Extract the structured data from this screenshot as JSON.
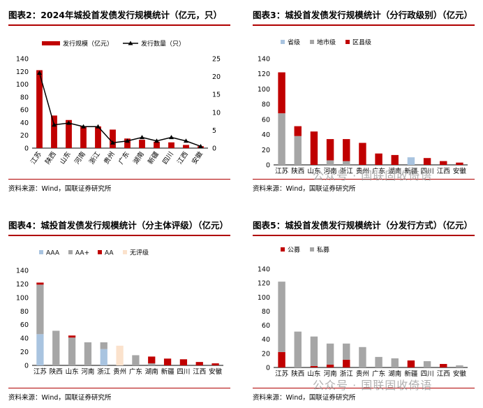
{
  "watermark": "公众号 · 国联固收倚语",
  "chart_data": [
    {
      "id": "c2",
      "type": "bar+line",
      "title": "图表2：2024年城投首发债发行规模统计（亿元，只）",
      "source": "资料来源：Wind，国联证券研究所",
      "categories": [
        "江苏",
        "陕西",
        "山东",
        "河南",
        "浙江",
        "贵州",
        "广东",
        "湖南",
        "新疆",
        "四川",
        "江西",
        "安徽"
      ],
      "series": [
        {
          "name": "发行规模（亿元）",
          "kind": "bar",
          "axis": "left",
          "color": "#c00000",
          "values": [
            122,
            51,
            44,
            34,
            34,
            29,
            15,
            13,
            10,
            9,
            5,
            3
          ]
        },
        {
          "name": "发行数量（只）",
          "kind": "line",
          "axis": "right",
          "color": "#000000",
          "values": [
            21,
            6.5,
            7,
            6,
            6,
            1.5,
            2,
            3,
            2,
            3,
            2,
            0.5
          ]
        }
      ],
      "ylim_left": [
        0,
        140
      ],
      "yticks_left": [
        0,
        20,
        40,
        60,
        80,
        100,
        120,
        140
      ],
      "ylim_right": [
        0,
        25
      ],
      "yticks_right": [
        0,
        5,
        10,
        15,
        20,
        25
      ],
      "legend": "top"
    },
    {
      "id": "c3",
      "type": "stacked-bar",
      "title": "图表3：城投首发债发行规模统计（分行政级别）（亿元）",
      "source": "资料来源：Wind，国联证券研究所",
      "categories": [
        "江苏",
        "陕西",
        "山东",
        "河南",
        "浙江",
        "贵州",
        "广东",
        "湖南",
        "新疆",
        "四川",
        "江西",
        "安徽"
      ],
      "series": [
        {
          "name": "省级",
          "color": "#a9c4e0",
          "values": [
            0,
            0,
            0,
            0,
            0,
            0,
            0,
            0,
            10,
            0,
            0,
            0
          ]
        },
        {
          "name": "地市级",
          "color": "#a6a6a6",
          "values": [
            68,
            38,
            0,
            6,
            5,
            0,
            0,
            0,
            0,
            0,
            0,
            0
          ]
        },
        {
          "name": "区县级",
          "color": "#c00000",
          "values": [
            54,
            13,
            44,
            28,
            29,
            29,
            15,
            13,
            0,
            9,
            5,
            3
          ]
        }
      ],
      "ylim": [
        0,
        140
      ],
      "yticks": [
        0,
        20,
        40,
        60,
        80,
        100,
        120,
        140
      ],
      "legend": "top-left"
    },
    {
      "id": "c4",
      "type": "stacked-bar",
      "title": "图表4：城投首发债发行规模统计（分主体评级）（亿元）",
      "source": "资料来源：Wind，国联证券研究所",
      "categories": [
        "江苏",
        "陕西",
        "山东",
        "河南",
        "浙江",
        "贵州",
        "广东",
        "湖南",
        "新疆",
        "四川",
        "江西",
        "安徽"
      ],
      "series": [
        {
          "name": "AAA",
          "color": "#a9c4e0",
          "values": [
            46,
            0,
            0,
            0,
            24,
            0,
            0,
            0,
            0,
            0,
            0,
            0
          ]
        },
        {
          "name": "AA+",
          "color": "#a6a6a6",
          "values": [
            73,
            51,
            41,
            34,
            10,
            0,
            15,
            3,
            0,
            0,
            0,
            0
          ]
        },
        {
          "name": "AA",
          "color": "#c00000",
          "values": [
            3,
            0,
            3,
            0,
            0,
            0,
            0,
            10,
            10,
            9,
            5,
            3
          ]
        },
        {
          "name": "无评级",
          "color": "#fbe2cc",
          "values": [
            0,
            0,
            0,
            0,
            0,
            29,
            0,
            0,
            0,
            0,
            0,
            0
          ]
        }
      ],
      "ylim": [
        0,
        140
      ],
      "yticks": [
        0,
        20,
        40,
        60,
        80,
        100,
        120,
        140
      ],
      "legend": "top-left"
    },
    {
      "id": "c5",
      "type": "stacked-bar",
      "title": "图表5：城投首发债发行规模统计（分发行方式）（亿元）",
      "source": "资料来源：Wind，国联证券研究所",
      "categories": [
        "江苏",
        "陕西",
        "山东",
        "河南",
        "浙江",
        "贵州",
        "广东",
        "湖南",
        "新疆",
        "四川",
        "江西",
        "安徽"
      ],
      "series": [
        {
          "name": "公募",
          "color": "#c00000",
          "values": [
            22,
            0,
            2,
            4,
            11,
            0,
            0,
            0,
            10,
            0,
            5,
            0
          ]
        },
        {
          "name": "私募",
          "color": "#a6a6a6",
          "values": [
            100,
            51,
            42,
            30,
            23,
            29,
            15,
            13,
            0,
            9,
            0,
            3
          ]
        }
      ],
      "ylim": [
        0,
        140
      ],
      "yticks": [
        0,
        20,
        40,
        60,
        80,
        100,
        120,
        140
      ],
      "legend": "top-left"
    }
  ]
}
